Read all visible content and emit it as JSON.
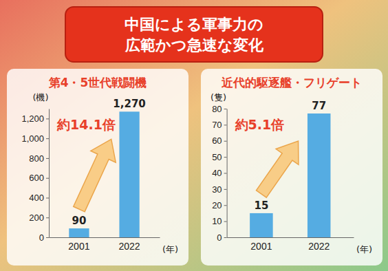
{
  "title": "中国による軍事力の広範かつ急速な変化",
  "chart_data": [
    {
      "type": "bar",
      "title": "第4・5世代戦闘機",
      "y_label": "(機)",
      "x_label": "(年)",
      "annotation": "約14.1倍",
      "categories": [
        "2001",
        "2022"
      ],
      "values": [
        90,
        1270
      ],
      "value_labels": [
        "90",
        "1,270"
      ],
      "color": "#55ace2",
      "ylim": [
        0,
        1300
      ],
      "yticks": [
        0,
        200,
        400,
        600,
        800,
        {
          "value": 1000,
          "label": "1,000"
        },
        {
          "value": 1200,
          "label": "1,200"
        }
      ],
      "data_labels": true,
      "grid": false
    },
    {
      "type": "bar",
      "title": "近代的駆逐艦・フリゲート",
      "y_label": "(隻)",
      "x_label": "(年)",
      "annotation": "約5.1倍",
      "categories": [
        "2001",
        "2022"
      ],
      "values": [
        15,
        77
      ],
      "color": "#55ace2",
      "ylim": [
        0,
        80
      ],
      "yticks": [
        0,
        10,
        20,
        30,
        40,
        50,
        60,
        70,
        80
      ],
      "data_labels": true,
      "grid": false
    }
  ]
}
